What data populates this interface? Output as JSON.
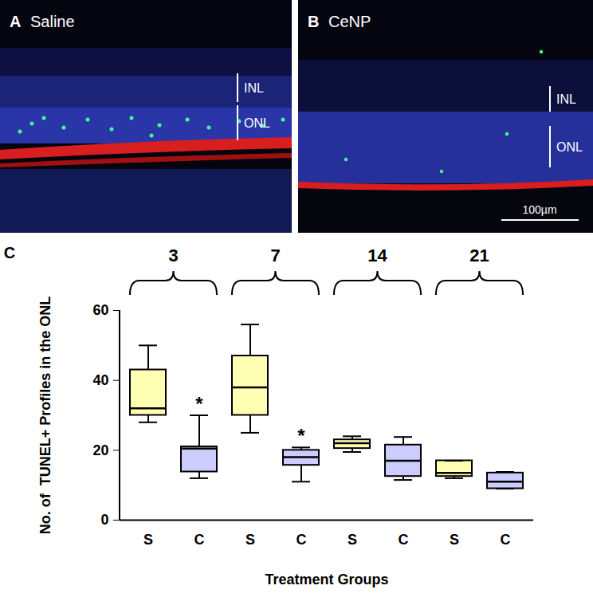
{
  "figure": {
    "panels": [
      {
        "label": "A",
        "title": "Saline"
      },
      {
        "label": "B",
        "title": "CeNP"
      }
    ],
    "layers": [
      "INL",
      "ONL"
    ],
    "scale_bar": "100µm",
    "chart_label": "C"
  },
  "chart_data": {
    "type": "box",
    "x_label": "Treatment Groups",
    "y_label": "No. of  TUNEL+ Profiles in the ONL",
    "categories": [
      "S",
      "C",
      "S",
      "C",
      "S",
      "C",
      "S",
      "C"
    ],
    "groups": [
      "3",
      "7",
      "14",
      "21"
    ],
    "colors": [
      "#ffffb3",
      "#ccccff",
      "#ffffb3",
      "#ccccff",
      "#ffffb3",
      "#ccccff",
      "#ffffb3",
      "#ccccff"
    ],
    "min": [
      28,
      12,
      25,
      11,
      19.5,
      11.5,
      12,
      9
    ],
    "q1": [
      30,
      13.8,
      30,
      15.7,
      20.5,
      12.5,
      12.5,
      9
    ],
    "median": [
      32,
      20.5,
      38,
      18,
      22,
      17,
      13.5,
      11
    ],
    "q3": [
      43,
      21,
      47,
      20,
      23,
      21.5,
      17,
      13.5
    ],
    "max": [
      50,
      30,
      56,
      20.8,
      24,
      23.8,
      17,
      13.8
    ],
    "annotations": [
      null,
      "*",
      null,
      "*",
      null,
      null,
      null,
      null
    ],
    "ylim": [
      0,
      60
    ],
    "yticks": [
      0,
      20,
      40,
      60
    ]
  }
}
